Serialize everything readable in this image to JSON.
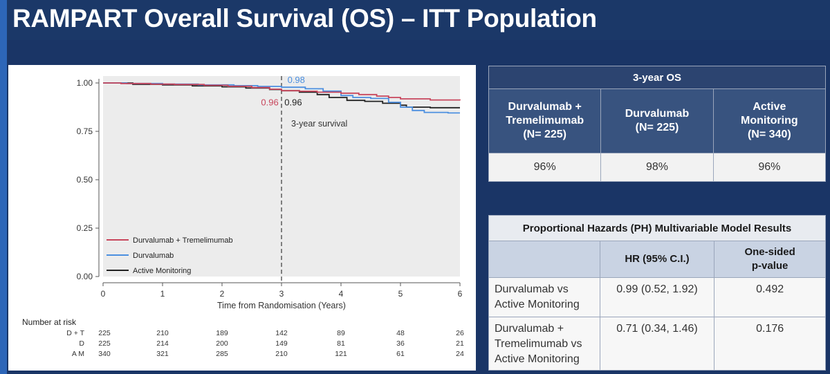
{
  "slide": {
    "title": "RAMPART Overall Survival (OS) – ITT Population"
  },
  "colors": {
    "background": "#1a3566",
    "accent_strip": "#2d66b8",
    "dt": "#c8465c",
    "d": "#4b8fe0",
    "am": "#222222"
  },
  "chart_data": {
    "type": "line",
    "title": "",
    "xlabel": "Time from Randomisation (Years)",
    "ylabel": "",
    "xlim": [
      0,
      6
    ],
    "ylim": [
      0,
      1
    ],
    "x_ticks": [
      "0",
      "1",
      "2",
      "3",
      "4",
      "5",
      "6"
    ],
    "y_ticks": [
      "0.00",
      "0.25",
      "0.50",
      "0.75",
      "1.00"
    ],
    "grid": false,
    "legend_position": "bottom-left",
    "series": [
      {
        "name": "Durvalumab + Tremelimumab",
        "color": "#c8465c",
        "points": [
          [
            0,
            1.0
          ],
          [
            0.3,
            0.997
          ],
          [
            0.8,
            0.994
          ],
          [
            1.2,
            0.992
          ],
          [
            1.7,
            0.988
          ],
          [
            2.1,
            0.983
          ],
          [
            2.5,
            0.976
          ],
          [
            2.8,
            0.968
          ],
          [
            3.0,
            0.96
          ],
          [
            3.3,
            0.957
          ],
          [
            3.6,
            0.952
          ],
          [
            4.0,
            0.947
          ],
          [
            4.3,
            0.94
          ],
          [
            4.6,
            0.932
          ],
          [
            4.8,
            0.925
          ],
          [
            5.0,
            0.918
          ],
          [
            5.5,
            0.912
          ],
          [
            6.0,
            0.91
          ]
        ]
      },
      {
        "name": "Durvalumab",
        "color": "#4b8fe0",
        "points": [
          [
            0,
            1.0
          ],
          [
            0.4,
            0.997
          ],
          [
            1.0,
            0.994
          ],
          [
            1.6,
            0.99
          ],
          [
            2.2,
            0.986
          ],
          [
            2.6,
            0.982
          ],
          [
            3.0,
            0.978
          ],
          [
            3.4,
            0.97
          ],
          [
            3.7,
            0.958
          ],
          [
            4.0,
            0.935
          ],
          [
            4.2,
            0.925
          ],
          [
            4.5,
            0.92
          ],
          [
            4.8,
            0.9
          ],
          [
            5.0,
            0.875
          ],
          [
            5.2,
            0.858
          ],
          [
            5.4,
            0.848
          ],
          [
            5.8,
            0.845
          ],
          [
            6.0,
            0.845
          ]
        ]
      },
      {
        "name": "Active Monitoring",
        "color": "#222222",
        "points": [
          [
            0,
            1.0
          ],
          [
            0.5,
            0.993
          ],
          [
            1.0,
            0.99
          ],
          [
            1.5,
            0.985
          ],
          [
            2.0,
            0.98
          ],
          [
            2.4,
            0.974
          ],
          [
            2.8,
            0.966
          ],
          [
            3.0,
            0.96
          ],
          [
            3.3,
            0.952
          ],
          [
            3.6,
            0.94
          ],
          [
            3.8,
            0.925
          ],
          [
            4.1,
            0.91
          ],
          [
            4.4,
            0.905
          ],
          [
            4.7,
            0.895
          ],
          [
            5.0,
            0.885
          ],
          [
            5.1,
            0.875
          ],
          [
            5.5,
            0.872
          ],
          [
            6.0,
            0.872
          ]
        ]
      }
    ],
    "reference_line": {
      "x": 3,
      "style": "dashed",
      "label": "3-year survival"
    },
    "annotations": [
      {
        "text": "0.98",
        "x": 3.1,
        "y": 0.985,
        "series": "Durvalumab"
      },
      {
        "text": "0.96",
        "x": 2.95,
        "y": 0.955,
        "series": "Durvalumab + Tremelimumab"
      },
      {
        "text": "0.96",
        "x": 3.05,
        "y": 0.955,
        "series": "Active Monitoring"
      }
    ],
    "risk_table": {
      "title": "Number at risk",
      "rows": [
        {
          "label": "D + T",
          "values": [
            225,
            210,
            189,
            142,
            89,
            48,
            26
          ]
        },
        {
          "label": "D",
          "values": [
            225,
            214,
            200,
            149,
            81,
            36,
            21
          ]
        },
        {
          "label": "A M",
          "values": [
            340,
            321,
            285,
            210,
            121,
            61,
            24
          ]
        }
      ]
    }
  },
  "os_table": {
    "title": "3-year OS",
    "columns": [
      {
        "lines": [
          "Durvalumab +",
          "Tremelimumab",
          "(N= 225)"
        ],
        "value": "96%"
      },
      {
        "lines": [
          "Durvalumab",
          "(N= 225)"
        ],
        "value": "98%"
      },
      {
        "lines": [
          "Active",
          "Monitoring",
          "(N= 340)"
        ],
        "value": "96%"
      }
    ]
  },
  "ph_table": {
    "title": "Proportional Hazards (PH) Multivariable Model Results",
    "col_hr": "HR (95% C.I.)",
    "col_p_lines": [
      "One-sided",
      "p-value"
    ],
    "rows": [
      {
        "label_lines": [
          "Durvalumab vs",
          "Active Monitoring"
        ],
        "hr": "0.99 (0.52, 1.92)",
        "p": "0.492"
      },
      {
        "label_lines": [
          "Durvalumab +",
          "Tremelimumab vs",
          "Active Monitoring"
        ],
        "hr": "0.71 (0.34, 1.46)",
        "p": "0.176"
      }
    ]
  }
}
